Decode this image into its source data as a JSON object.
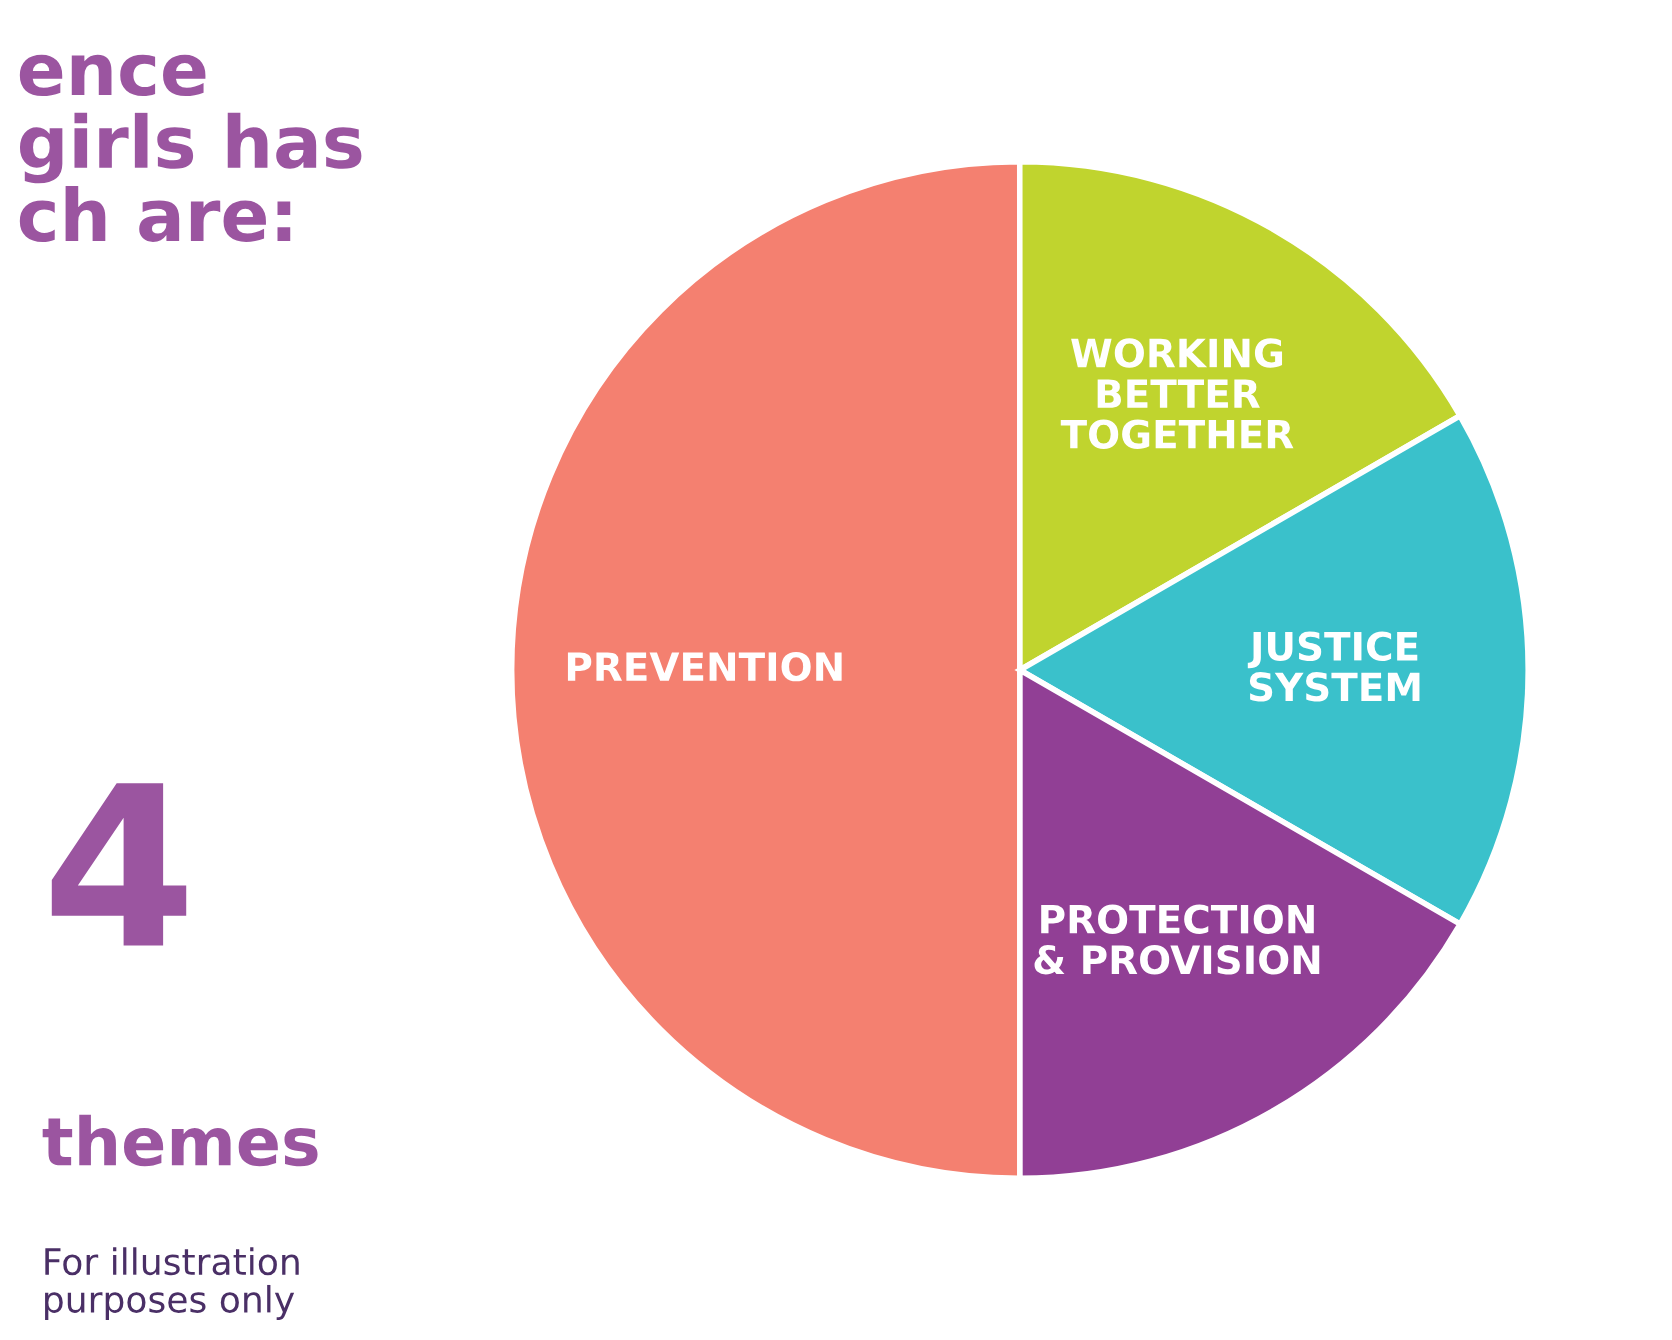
{
  "chart_data": {
    "type": "pie",
    "title": "ence\ngirls has\nch are:",
    "annotations": [
      "4",
      "themes",
      "For illustration\npurposes only"
    ],
    "categories": [
      "PREVENTION",
      "WORKING\nBETTER\nTOGETHER",
      "JUSTICE\nSYSTEM",
      "PROTECTION\n& PROVISION"
    ],
    "values": [
      50,
      16.67,
      16.67,
      16.67
    ],
    "colors": [
      "#f48070",
      "#c0d42e",
      "#3ac1cb",
      "#913f95"
    ],
    "legend": false
  }
}
